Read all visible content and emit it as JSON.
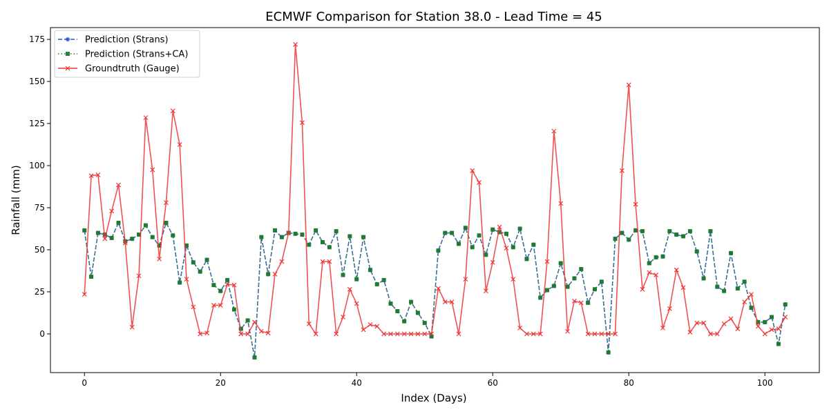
{
  "chart_data": {
    "type": "line",
    "title": "ECMWF Comparison for Station 38.0 - Lead Time = 45",
    "xlabel": "Index (Days)",
    "ylabel": "Rainfall (mm)",
    "xlim": [
      -5,
      108
    ],
    "ylim": [
      -23,
      182
    ],
    "xticks": [
      0,
      20,
      40,
      60,
      80,
      100
    ],
    "yticks": [
      0,
      25,
      50,
      75,
      100,
      125,
      150,
      175
    ],
    "grid": false,
    "legend_position": "top-left",
    "series": [
      {
        "name": "Prediction (Strans)",
        "color": "#2b4fd0",
        "line_style": "dashed",
        "marker": "circle",
        "values": [
          61.5,
          34,
          60,
          59,
          57,
          66,
          55,
          56.5,
          59,
          64.5,
          57.5,
          52.5,
          66,
          58.5,
          30.5,
          52.5,
          42.5,
          37,
          44,
          29,
          25.5,
          32,
          14.5,
          3,
          8,
          -14,
          57.5,
          35.5,
          61.5,
          57.5,
          60,
          59.5,
          59,
          53,
          61.5,
          54.5,
          51.5,
          61,
          35,
          58,
          32.5,
          57.5,
          38,
          29.5,
          32,
          18,
          13.5,
          7.5,
          19,
          12.5,
          6.5,
          -1.5,
          49.5,
          60,
          60,
          53.5,
          63,
          51.5,
          58.5,
          47,
          62,
          60.5,
          59.5,
          51.5,
          62.5,
          44.5,
          53,
          21.5,
          26,
          28.5,
          42,
          28,
          33,
          38.5,
          18.5,
          26.5,
          31,
          -11,
          56.5,
          60,
          56,
          61.5,
          61,
          42,
          45.5,
          46,
          61,
          59,
          58,
          61,
          49,
          33,
          61,
          28,
          25.5,
          48,
          27,
          31,
          15.5,
          7,
          7,
          10,
          -6,
          17.5
        ]
      },
      {
        "name": "Prediction (Strans+CA)",
        "color": "#1f7a2e",
        "line_style": "dotted",
        "marker": "square",
        "values": [
          61.5,
          34,
          60,
          59,
          57,
          66,
          55,
          56.5,
          59,
          64.5,
          57.5,
          52.5,
          66,
          58.5,
          30.5,
          52.5,
          42.5,
          37,
          44,
          29,
          25.5,
          32,
          14.5,
          3,
          8,
          -14,
          57.5,
          35.5,
          61.5,
          57.5,
          60,
          59.5,
          59,
          53,
          61.5,
          54.5,
          51.5,
          61,
          35,
          58,
          32.5,
          57.5,
          38,
          29.5,
          32,
          18,
          13.5,
          7.5,
          19,
          12.5,
          6.5,
          -1.5,
          49.5,
          60,
          60,
          53.5,
          63,
          51.5,
          58.5,
          47,
          62,
          60.5,
          59.5,
          51.5,
          62.5,
          44.5,
          53,
          21.5,
          26,
          28.5,
          42,
          28,
          33,
          38.5,
          18.5,
          26.5,
          31,
          -11,
          56.5,
          60,
          56,
          61.5,
          61,
          42,
          45.5,
          46,
          61,
          59,
          58,
          61,
          49,
          33,
          61,
          28,
          25.5,
          48,
          27,
          31,
          15.5,
          7,
          7,
          10,
          -6,
          17.5
        ]
      },
      {
        "name": "Groundtruth (Gauge)",
        "color": "#ee3333",
        "line_style": "solid",
        "marker": "x",
        "values": [
          23.5,
          94,
          94.5,
          56.5,
          73,
          88.5,
          54,
          4,
          34.5,
          128.5,
          97.5,
          44.5,
          78,
          132.5,
          112.5,
          32.5,
          16,
          0,
          0.5,
          17,
          17,
          29.5,
          29,
          0,
          0,
          7,
          1.5,
          0.5,
          35.5,
          43,
          60,
          172,
          125.5,
          6,
          0,
          43,
          43,
          0,
          10,
          26.5,
          18,
          2.5,
          5.5,
          4.5,
          0,
          0,
          0,
          0,
          0,
          0,
          0,
          0,
          27,
          19,
          19,
          0,
          32.5,
          97,
          90,
          25.5,
          42.5,
          63.5,
          51,
          32.5,
          3.5,
          0,
          0,
          0,
          43,
          120.5,
          77.5,
          1.5,
          19.5,
          18.5,
          0,
          0,
          0,
          0,
          0,
          97,
          148,
          77,
          26.5,
          36.5,
          35,
          3.5,
          15,
          38,
          27.5,
          1,
          6.5,
          6.5,
          0,
          0,
          6,
          9,
          3,
          19,
          23.5,
          4.5,
          0,
          2.5,
          3,
          10
        ]
      }
    ]
  }
}
